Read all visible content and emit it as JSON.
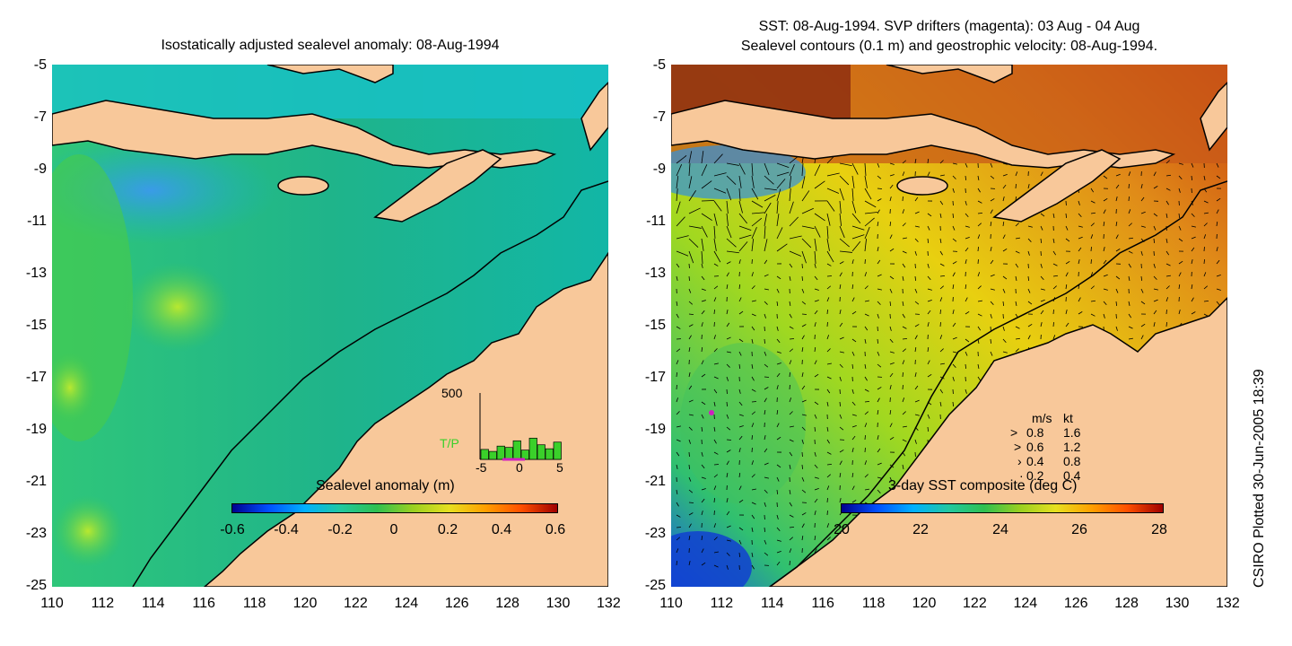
{
  "left_panel": {
    "title": "Isostatically adjusted sealevel anomaly: 08-Aug-1994",
    "colorbar": {
      "title": "Sealevel anomaly (m)",
      "ticks": [
        "-0.6",
        "-0.4",
        "-0.2",
        "0",
        "0.2",
        "0.4",
        "0.6"
      ]
    },
    "inset": {
      "y_label": "500",
      "series_label": "T/P",
      "x_ticks": [
        "-5",
        "0",
        "5"
      ],
      "bars": [
        0.15,
        0.12,
        0.2,
        0.18,
        0.28,
        0.14,
        0.32,
        0.22,
        0.16,
        0.26
      ]
    }
  },
  "right_panel": {
    "title_line1": "SST: 08-Aug-1994. SVP drifters (magenta): 03 Aug - 04 Aug",
    "title_line2": "Sealevel contours (0.1 m) and geostrophic velocity: 08-Aug-1994.",
    "colorbar": {
      "title": "3-day SST composite (deg C)",
      "ticks": [
        "20",
        "22",
        "24",
        "26",
        "28"
      ]
    },
    "velocity_legend": {
      "header_ms": "m/s",
      "header_kt": "kt",
      "rows": [
        {
          "ms": "0.8",
          "kt": "1.6"
        },
        {
          "ms": "0.6",
          "kt": "1.2"
        },
        {
          "ms": "0.4",
          "kt": "0.8"
        },
        {
          "ms": "0.2",
          "kt": "0.4"
        }
      ]
    }
  },
  "axes": {
    "y_ticks": [
      "-5",
      "-7",
      "-9",
      "-11",
      "-13",
      "-15",
      "-17",
      "-19",
      "-21",
      "-23",
      "-25"
    ],
    "x_ticks": [
      "110",
      "112",
      "114",
      "116",
      "118",
      "120",
      "122",
      "124",
      "126",
      "128",
      "130",
      "132"
    ]
  },
  "footer": {
    "plot_credit": "CSIRO Plotted 30-Jun-2005 18:39"
  },
  "colors": {
    "land": "#f8c89a",
    "coast": "#000000",
    "ocean_mid": "#19b08a",
    "sst_warm": "#e07a1a",
    "drifter": "#d020c0"
  }
}
